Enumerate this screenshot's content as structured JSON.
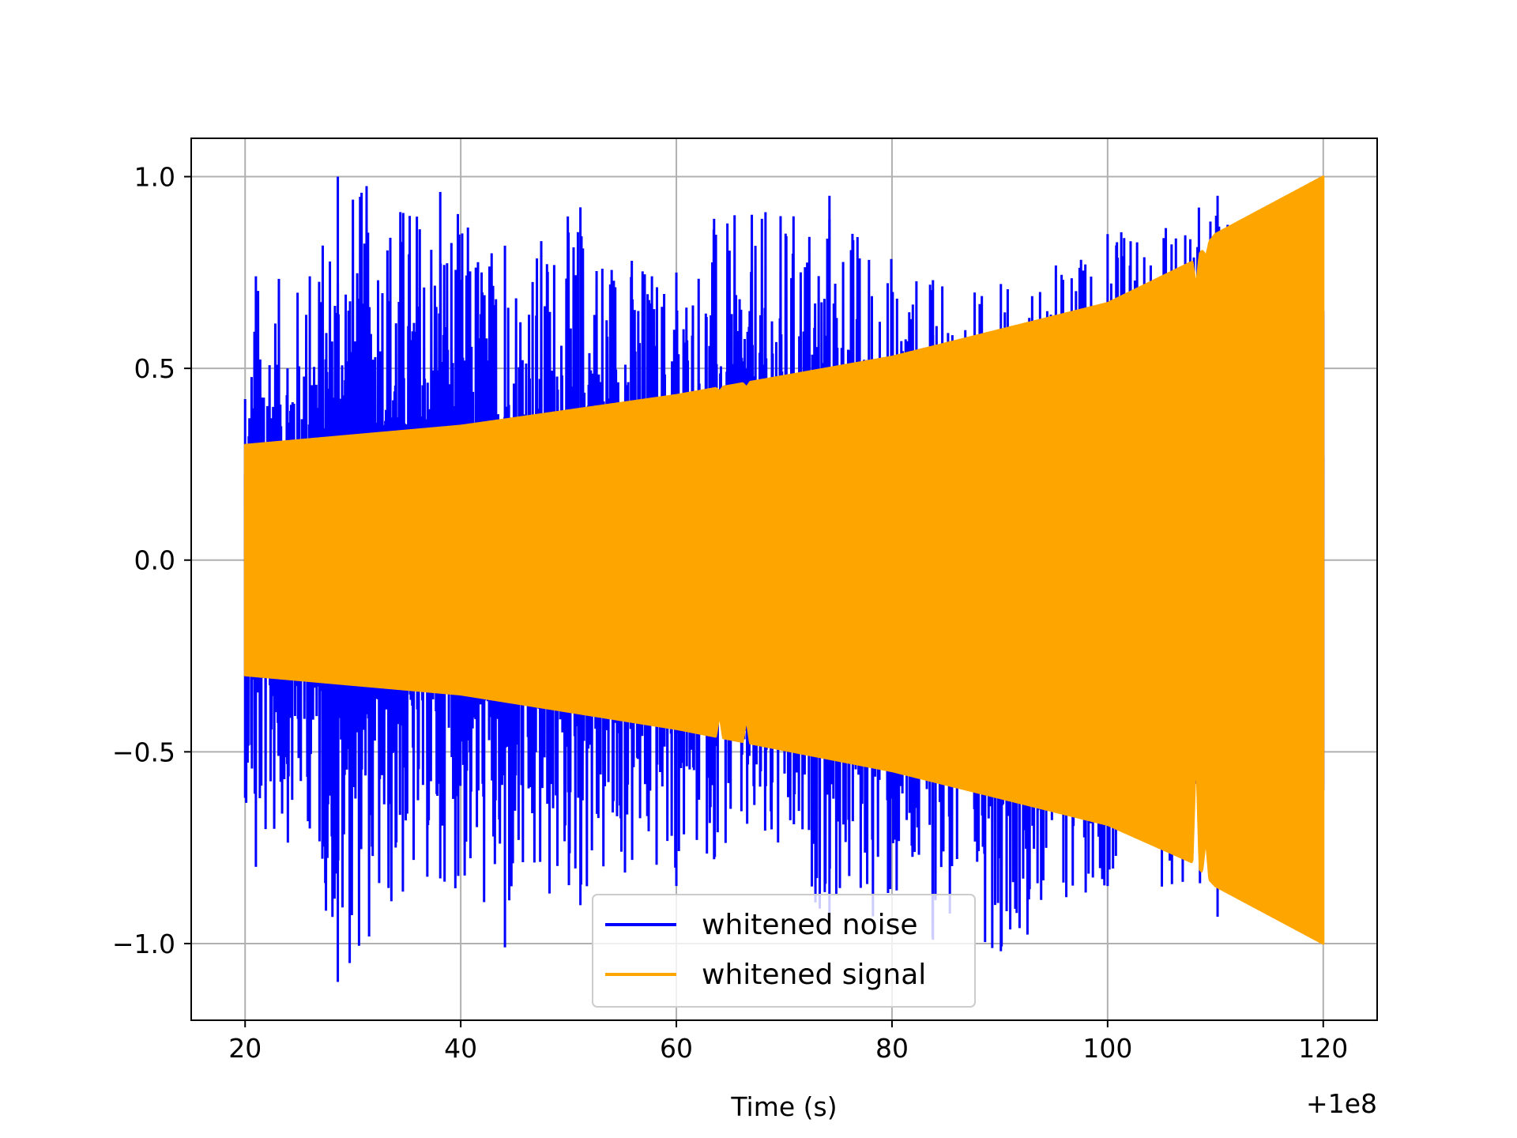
{
  "chart_data": {
    "type": "line",
    "title": "",
    "xlabel": "Time (s)",
    "ylabel": "",
    "x_offset_label": "+1e8",
    "xlim": [
      15,
      125
    ],
    "ylim": [
      -1.2,
      1.1
    ],
    "xticks": [
      20,
      40,
      60,
      80,
      100,
      120
    ],
    "xtick_labels": [
      "20",
      "40",
      "60",
      "80",
      "100",
      "120"
    ],
    "yticks": [
      -1.0,
      -0.5,
      0.0,
      0.5,
      1.0
    ],
    "ytick_labels": [
      "−1.0",
      "−0.5",
      "0.0",
      "0.5",
      "1.0"
    ],
    "grid": true,
    "legend_position": "lower center",
    "x_range": [
      20,
      120
    ],
    "series": [
      {
        "name": "whitened noise",
        "color": "#0000ff",
        "envelope_points": [
          {
            "x": 20,
            "upper": 0.42,
            "lower": -0.62
          },
          {
            "x": 21,
            "upper": 0.74,
            "lower": -0.8
          },
          {
            "x": 26,
            "upper": 0.74,
            "lower": -0.7
          },
          {
            "x": 28.6,
            "upper": 1.0,
            "lower": -1.1
          },
          {
            "x": 38.1,
            "upper": 0.96,
            "lower": -0.83
          },
          {
            "x": 44.1,
            "upper": 0.82,
            "lower": -1.01
          },
          {
            "x": 51.1,
            "upper": 0.92,
            "lower": -0.9
          },
          {
            "x": 60,
            "upper": 0.75,
            "lower": -0.85
          },
          {
            "x": 63.5,
            "upper": 0.89,
            "lower": -0.78
          },
          {
            "x": 74.2,
            "upper": 0.95,
            "lower": -0.93
          },
          {
            "x": 83.8,
            "upper": 0.73,
            "lower": -0.99
          },
          {
            "x": 90.1,
            "upper": 0.72,
            "lower": -1.02
          },
          {
            "x": 100,
            "upper": 0.85,
            "lower": -0.85
          },
          {
            "x": 110.2,
            "upper": 0.95,
            "lower": -0.93
          },
          {
            "x": 120,
            "upper": 0.65,
            "lower": -0.6
          }
        ]
      },
      {
        "name": "whitened signal",
        "color": "#ffa500",
        "envelope_points": [
          {
            "x": 20,
            "upper": 0.3,
            "lower": -0.3
          },
          {
            "x": 40,
            "upper": 0.35,
            "lower": -0.35
          },
          {
            "x": 60,
            "upper": 0.43,
            "lower": -0.44
          },
          {
            "x": 80,
            "upper": 0.53,
            "lower": -0.55
          },
          {
            "x": 100,
            "upper": 0.67,
            "lower": -0.69
          },
          {
            "x": 108,
            "upper": 0.78,
            "lower": -0.79
          },
          {
            "x": 110,
            "upper": 0.85,
            "lower": -0.85
          },
          {
            "x": 120,
            "upper": 1.0,
            "lower": -1.0
          }
        ],
        "notches": [
          {
            "x": 64.0,
            "upper": 0.44,
            "lower": -0.4
          },
          {
            "x": 66.5,
            "upper": 0.45,
            "lower": -0.41
          },
          {
            "x": 108.2,
            "upper": 0.71,
            "lower": -0.47
          },
          {
            "x": 109.1,
            "upper": 0.79,
            "lower": -0.72
          }
        ]
      }
    ]
  }
}
